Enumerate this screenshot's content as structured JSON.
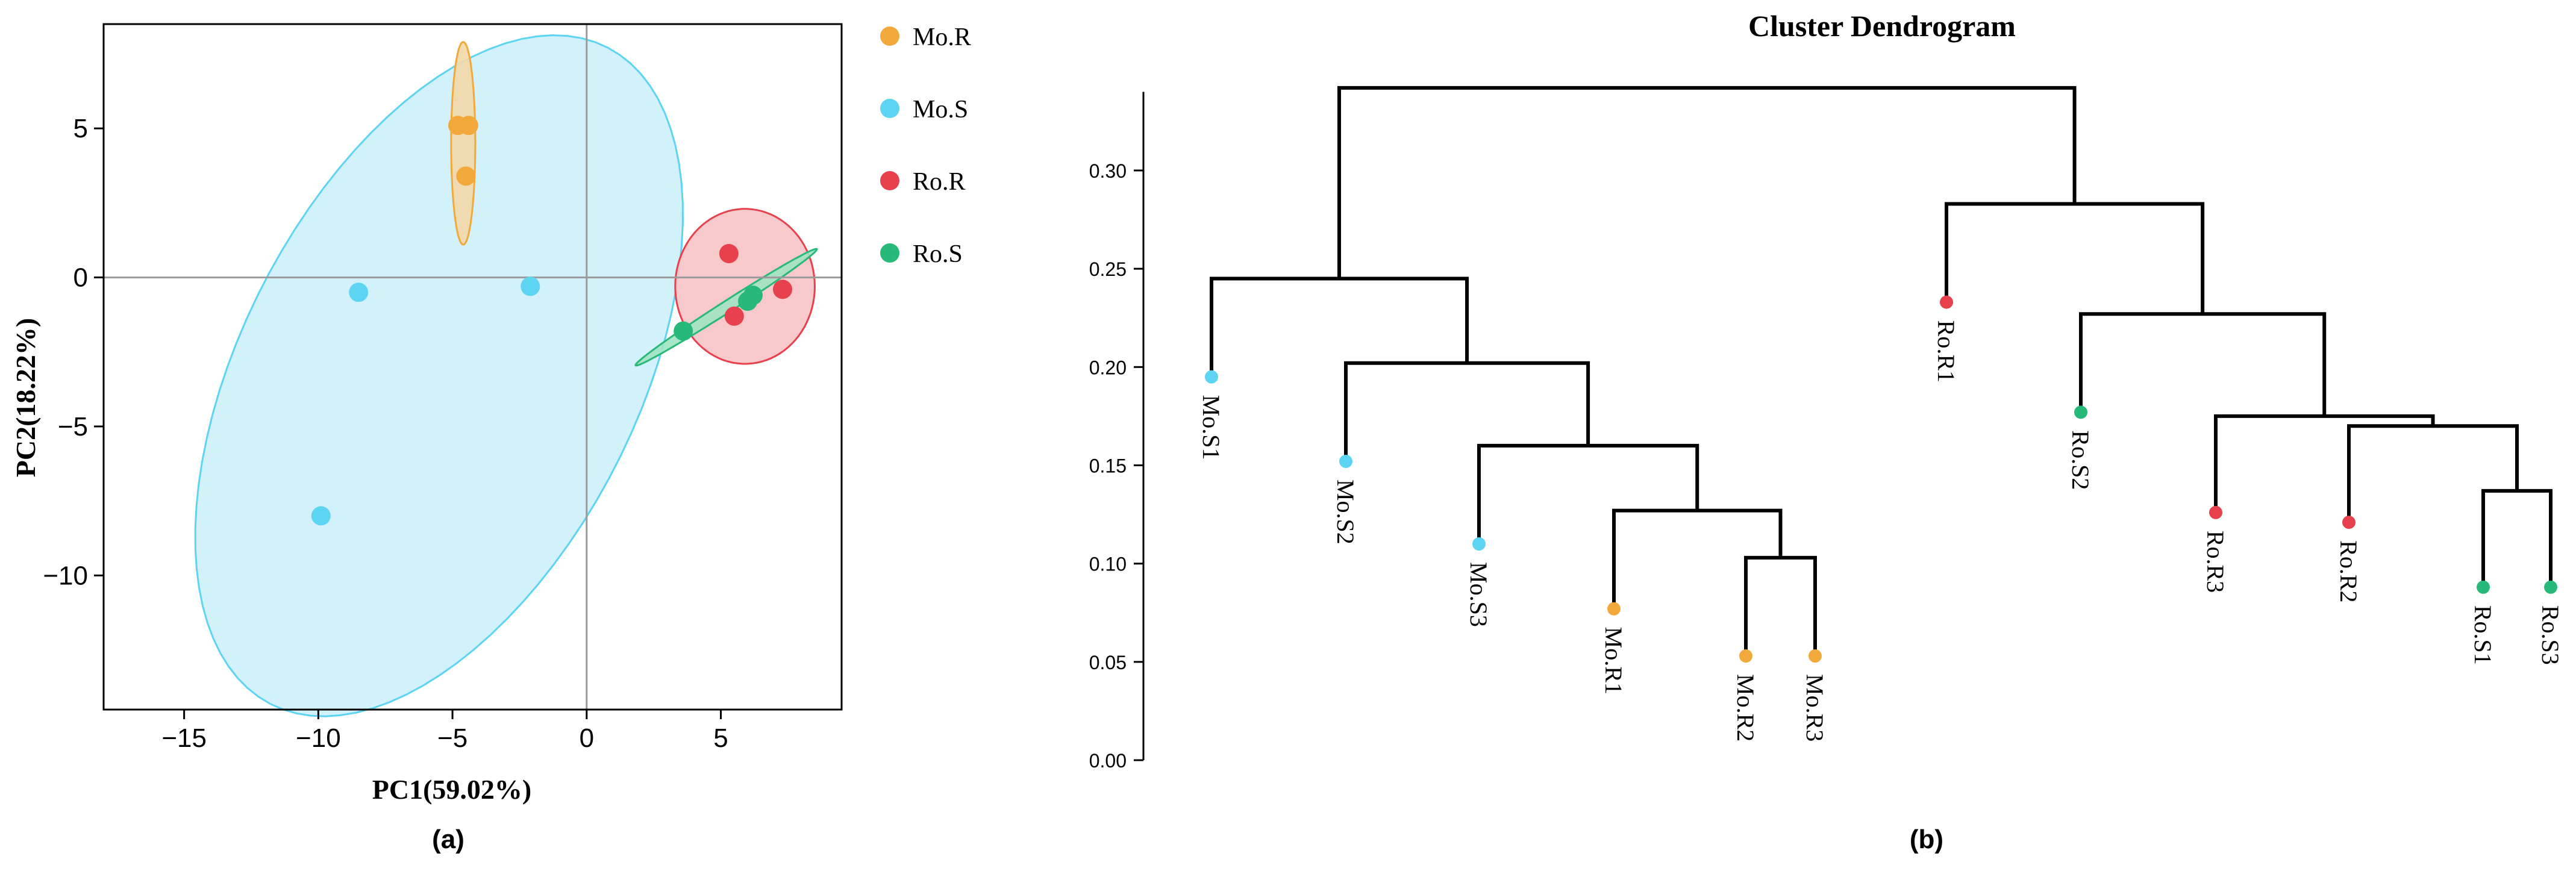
{
  "colors": {
    "Mo.R": "#f0a93a",
    "Mo.S": "#5cd4f2",
    "Ro.R": "#e6414c",
    "Ro.S": "#27b978",
    "Mo.S_fill": "#cdf0f9",
    "Ro.R_fill": "#f7c3c5",
    "Mo.R_fill": "#f3d8a8",
    "Ro.S_fill": "#9fe3c2",
    "axis": "#000000",
    "refline": "#9b9b9b"
  },
  "chart_data": [
    {
      "type": "scatter",
      "panel_label": "(a)",
      "xlabel": "PC1(59.02%)",
      "ylabel": "PC2(18.22%)",
      "xlim": [
        -18,
        9.5
      ],
      "ylim": [
        -14.5,
        8.5
      ],
      "x_ticks": [
        -15,
        -10,
        -5,
        0,
        5
      ],
      "x_tick_labels": [
        "−15",
        "−10",
        "−5",
        "0",
        "5"
      ],
      "y_ticks": [
        5,
        0,
        -5,
        -10
      ],
      "y_tick_labels": [
        "5",
        "0",
        "−5",
        "−10"
      ],
      "legend": [
        {
          "name": "Mo.R",
          "label": "Mo.R"
        },
        {
          "name": "Mo.S",
          "label": "Mo.S"
        },
        {
          "name": "Ro.R",
          "label": "Ro.R"
        },
        {
          "name": "Ro.S",
          "label": "Ro.S"
        }
      ],
      "series": [
        {
          "name": "Mo.R",
          "points": [
            [
              -4.8,
              5.1
            ],
            [
              -4.4,
              5.1
            ],
            [
              -4.5,
              3.4
            ]
          ]
        },
        {
          "name": "Mo.S",
          "points": [
            [
              -8.5,
              -0.5
            ],
            [
              -2.1,
              -0.3
            ],
            [
              -9.9,
              -8.0
            ]
          ]
        },
        {
          "name": "Ro.R",
          "points": [
            [
              5.3,
              0.8
            ],
            [
              5.5,
              -1.3
            ],
            [
              7.3,
              -0.4
            ]
          ]
        },
        {
          "name": "Ro.S",
          "points": [
            [
              3.6,
              -1.8
            ],
            [
              6.0,
              -0.8
            ],
            [
              6.2,
              -0.6
            ]
          ]
        }
      ],
      "ellipses": [
        {
          "name": "Mo.S",
          "center": [
            -5.5,
            -3.3
          ],
          "semi_axes": [
            12.7,
            7.2
          ],
          "angle_deg": 58
        },
        {
          "name": "Mo.R",
          "center": [
            -4.6,
            4.5
          ],
          "semi_axes": [
            0.45,
            3.4
          ],
          "angle_deg": 0
        },
        {
          "name": "Ro.R",
          "center": [
            5.9,
            -0.3
          ],
          "semi_axes": [
            2.6,
            2.6
          ],
          "angle_deg": 0
        },
        {
          "name": "Ro.S",
          "center": [
            5.2,
            -1.0
          ],
          "semi_axes": [
            3.9,
            0.2
          ],
          "angle_deg": 30
        }
      ]
    },
    {
      "type": "dendrogram",
      "title": "Cluster Dendrogram",
      "panel_label": "(b)",
      "ylim": [
        0,
        0.34
      ],
      "y_ticks": [
        0,
        0.05,
        0.1,
        0.15,
        0.2,
        0.25,
        0.3
      ],
      "y_tick_labels": [
        "0.00",
        "0.05",
        "0.10",
        "0.15",
        "0.20",
        "0.25",
        "0.30"
      ],
      "leaves": [
        {
          "label": "Mo.S1",
          "group": "Mo.S",
          "height": 0.195
        },
        {
          "label": "Mo.S2",
          "group": "Mo.S",
          "height": 0.152
        },
        {
          "label": "Mo.S3",
          "group": "Mo.S",
          "height": 0.11
        },
        {
          "label": "Mo.R1",
          "group": "Mo.R",
          "height": 0.077
        },
        {
          "label": "Mo.R2",
          "group": "Mo.R",
          "height": 0.053
        },
        {
          "label": "Mo.R3",
          "group": "Mo.R",
          "height": 0.053
        },
        {
          "label": "Ro.R1",
          "group": "Ro.R",
          "height": 0.233
        },
        {
          "label": "Ro.S2",
          "group": "Ro.S",
          "height": 0.177
        },
        {
          "label": "Ro.R3",
          "group": "Ro.R",
          "height": 0.126
        },
        {
          "label": "Ro.R2",
          "group": "Ro.R",
          "height": 0.121
        },
        {
          "label": "Ro.S1",
          "group": "Ro.S",
          "height": 0.088
        },
        {
          "label": "Ro.S3",
          "group": "Ro.S",
          "height": 0.088
        }
      ],
      "merges": [
        {
          "a": 4,
          "b": 5,
          "height": 0.103
        },
        {
          "a": 3,
          "b": -1,
          "height": 0.127
        },
        {
          "a": 2,
          "b": -2,
          "height": 0.16
        },
        {
          "a": 1,
          "b": -3,
          "height": 0.202
        },
        {
          "a": 0,
          "b": -4,
          "height": 0.245
        },
        {
          "a": 10,
          "b": 11,
          "height": 0.137
        },
        {
          "a": 9,
          "b": -6,
          "height": 0.17
        },
        {
          "a": 8,
          "b": -7,
          "height": 0.175
        },
        {
          "a": 7,
          "b": -8,
          "height": 0.227
        },
        {
          "a": 6,
          "b": -9,
          "height": 0.283
        },
        {
          "a": -5,
          "b": -10,
          "height": 0.342
        }
      ]
    }
  ]
}
